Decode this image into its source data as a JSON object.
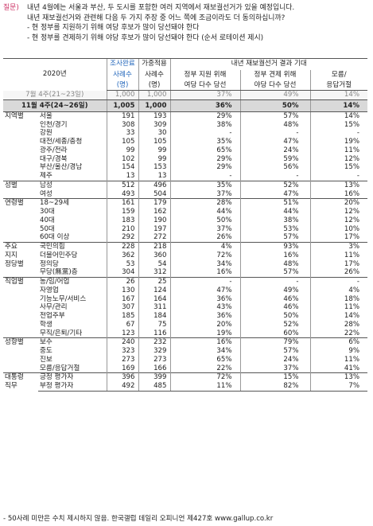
{
  "question": {
    "label": "질문)",
    "lines": [
      "내년 4월에는 서울과 부산, 두 도시를 포함한 여러 지역에서 재보궐선거가 있을 예정입니다.",
      "내년 재보궐선거와 관련해 다음 두 가지 주장 중 어느 쪽에 조금이라도 더 동의하십니까?",
      "- 현 정부를 지원하기 위해 여당 후보가 많이 당선돼야 한다",
      "- 현 정부를 견제하기 위해 야당 후보가 많이 당선돼야 한다 (순서 로테이션 제시)"
    ]
  },
  "header": {
    "year": "2020년",
    "survey_complete": "조사완료",
    "weighted": "가중적용",
    "cases": "사례수",
    "unit": "(명)",
    "group_title": "내년 재보궐선거 결과 기대",
    "col_support_1": "정부 지원 위해",
    "col_support_2": "여당 다수 당선",
    "col_check_1": "정부 견제 위해",
    "col_check_2": "야당 다수 당선",
    "col_unknown_1": "모름/",
    "col_unknown_2": "응답거절"
  },
  "prev_row": {
    "label": "7월 4주(21~23일)",
    "n1": "1,000",
    "n2": "1,000",
    "a": "37%",
    "b": "49%",
    "c": "14%"
  },
  "cur_row": {
    "label": "11월 4주(24~26일)",
    "n1": "1,005",
    "n2": "1,000",
    "a": "36%",
    "b": "50%",
    "c": "14%"
  },
  "sections": [
    {
      "group": "지역별",
      "rows": [
        {
          "label": "서울",
          "n1": "191",
          "n2": "193",
          "a": "29%",
          "b": "57%",
          "c": "14%"
        },
        {
          "label": "인천/경기",
          "n1": "308",
          "n2": "309",
          "a": "38%",
          "b": "48%",
          "c": "15%"
        },
        {
          "label": "강원",
          "n1": "33",
          "n2": "30",
          "a": "-",
          "b": "-",
          "c": "-"
        },
        {
          "label": "대전/세종/충청",
          "n1": "105",
          "n2": "105",
          "a": "35%",
          "b": "47%",
          "c": "19%"
        },
        {
          "label": "광주/전라",
          "n1": "99",
          "n2": "99",
          "a": "65%",
          "b": "24%",
          "c": "11%"
        },
        {
          "label": "대구/경북",
          "n1": "102",
          "n2": "99",
          "a": "29%",
          "b": "59%",
          "c": "12%"
        },
        {
          "label": "부산/울산/경남",
          "n1": "154",
          "n2": "153",
          "a": "29%",
          "b": "56%",
          "c": "15%"
        },
        {
          "label": "제주",
          "n1": "13",
          "n2": "13",
          "a": "-",
          "b": "-",
          "c": "-"
        }
      ]
    },
    {
      "group": "성별",
      "rows": [
        {
          "label": "남성",
          "n1": "512",
          "n2": "496",
          "a": "35%",
          "b": "52%",
          "c": "13%"
        },
        {
          "label": "여성",
          "n1": "493",
          "n2": "504",
          "a": "37%",
          "b": "47%",
          "c": "16%"
        }
      ]
    },
    {
      "group": "연령별",
      "rows": [
        {
          "label": "18~29세",
          "n1": "161",
          "n2": "179",
          "a": "28%",
          "b": "51%",
          "c": "20%"
        },
        {
          "label": "30대",
          "n1": "159",
          "n2": "162",
          "a": "44%",
          "b": "44%",
          "c": "12%"
        },
        {
          "label": "40대",
          "n1": "183",
          "n2": "190",
          "a": "50%",
          "b": "38%",
          "c": "12%"
        },
        {
          "label": "50대",
          "n1": "210",
          "n2": "197",
          "a": "37%",
          "b": "53%",
          "c": "10%"
        },
        {
          "label": "60대 이상",
          "n1": "292",
          "n2": "272",
          "a": "26%",
          "b": "57%",
          "c": "17%"
        }
      ]
    },
    {
      "group": "주요\n지지\n정당별",
      "rows": [
        {
          "label": "국민의힘",
          "n1": "228",
          "n2": "218",
          "a": "4%",
          "b": "93%",
          "c": "3%"
        },
        {
          "label": "더불어민주당",
          "n1": "362",
          "n2": "360",
          "a": "72%",
          "b": "16%",
          "c": "11%"
        },
        {
          "label": "정의당",
          "n1": "53",
          "n2": "54",
          "a": "34%",
          "b": "48%",
          "c": "17%"
        },
        {
          "label": "무당(無黨)층",
          "n1": "304",
          "n2": "312",
          "a": "16%",
          "b": "57%",
          "c": "26%"
        }
      ]
    },
    {
      "group": "직업별",
      "rows": [
        {
          "label": "농/임/어업",
          "n1": "26",
          "n2": "25",
          "a": "-",
          "b": "-",
          "c": "-"
        },
        {
          "label": "자영업",
          "n1": "130",
          "n2": "124",
          "a": "47%",
          "b": "49%",
          "c": "4%"
        },
        {
          "label": "기능노무/서비스",
          "n1": "167",
          "n2": "164",
          "a": "36%",
          "b": "46%",
          "c": "18%"
        },
        {
          "label": "사무/관리",
          "n1": "307",
          "n2": "311",
          "a": "43%",
          "b": "46%",
          "c": "11%"
        },
        {
          "label": "전업주부",
          "n1": "185",
          "n2": "184",
          "a": "36%",
          "b": "50%",
          "c": "14%"
        },
        {
          "label": "학생",
          "n1": "67",
          "n2": "75",
          "a": "20%",
          "b": "52%",
          "c": "28%"
        },
        {
          "label": "무직/은퇴/기타",
          "n1": "123",
          "n2": "116",
          "a": "19%",
          "b": "60%",
          "c": "22%"
        }
      ]
    },
    {
      "group": "성향별",
      "rows": [
        {
          "label": "보수",
          "n1": "240",
          "n2": "232",
          "a": "16%",
          "b": "79%",
          "c": "6%"
        },
        {
          "label": "중도",
          "n1": "323",
          "n2": "329",
          "a": "34%",
          "b": "57%",
          "c": "9%"
        },
        {
          "label": "진보",
          "n1": "273",
          "n2": "273",
          "a": "65%",
          "b": "24%",
          "c": "11%"
        },
        {
          "label": "모름/응답거절",
          "n1": "169",
          "n2": "166",
          "a": "22%",
          "b": "37%",
          "c": "41%"
        }
      ]
    },
    {
      "group": "대통령\n직무",
      "rows": [
        {
          "label": "긍정 평가자",
          "n1": "396",
          "n2": "399",
          "a": "72%",
          "b": "15%",
          "c": "13%"
        },
        {
          "label": "부정 평가자",
          "n1": "492",
          "n2": "485",
          "a": "11%",
          "b": "82%",
          "c": "7%"
        }
      ]
    }
  ],
  "footer": "- 50사례 미만은 수치 제시하지 않음. 한국갤럽 데일리 오피니언 제427호 www.gallup.co.kr",
  "colors": {
    "accent": "#2266bb",
    "question_label": "#cc3366",
    "current_row_bg": "#d9d9d9"
  }
}
